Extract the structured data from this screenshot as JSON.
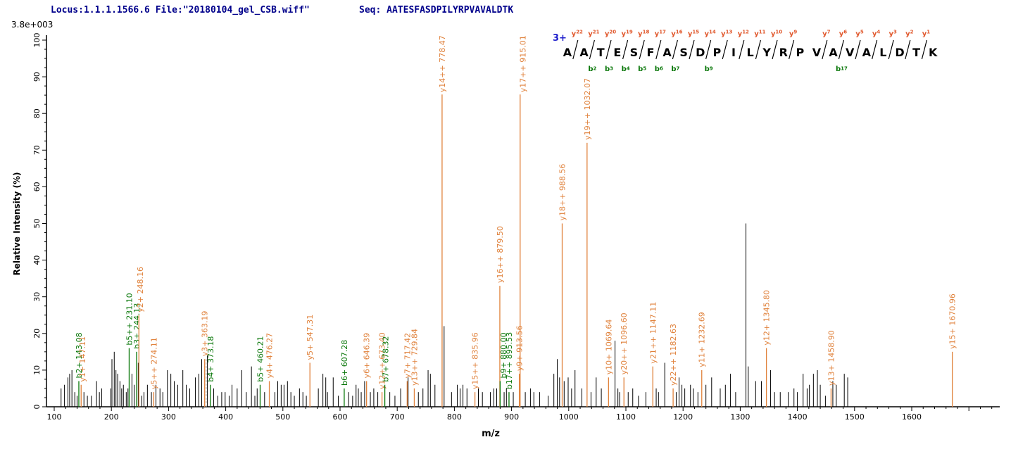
{
  "header": {
    "locus_file": "Locus:1.1.1.1566.6 File:\"20180104_gel_CSB.wiff\"",
    "seq": "Seq: AATESFASDPILYRPVAVALDTK"
  },
  "chart_data": {
    "type": "bar",
    "subtype": "ms2-peptide-fragmentation-spectrum",
    "title": "",
    "x_axis": {
      "label": "m/z",
      "min": 100,
      "max": 1755,
      "major_tick": 100,
      "minor_tick": 20,
      "tick_labels": [
        100,
        200,
        300,
        400,
        500,
        600,
        700,
        800,
        900,
        1000,
        1100,
        1200,
        1300,
        1400,
        1500,
        1600
      ]
    },
    "y_axis": {
      "label": "Relative  Intensity  (%)",
      "min": 0,
      "max": 100,
      "major_tick": 10,
      "minor_tick": 2.5,
      "tick_labels": [
        0,
        10,
        20,
        30,
        40,
        50,
        60,
        70,
        80,
        90,
        100
      ],
      "max_count_label": "3.8e+003"
    },
    "precursor_charge": "3+",
    "peptide": {
      "sequence": "AATESFASDPILYRPVAVALDTK",
      "charge": "3+",
      "y_ions": [
        {
          "label": "y22",
          "gap": 1
        },
        {
          "label": "y21",
          "gap": 2
        },
        {
          "label": "y20",
          "gap": 3
        },
        {
          "label": "y19",
          "gap": 4
        },
        {
          "label": "y18",
          "gap": 5
        },
        {
          "label": "y17",
          "gap": 6
        },
        {
          "label": "y16",
          "gap": 7
        },
        {
          "label": "y15",
          "gap": 8
        },
        {
          "label": "y14",
          "gap": 9
        },
        {
          "label": "y13",
          "gap": 10
        },
        {
          "label": "y12",
          "gap": 11
        },
        {
          "label": "y11",
          "gap": 12
        },
        {
          "label": "y10",
          "gap": 13
        },
        {
          "label": "y9",
          "gap": 14
        },
        {
          "label": "y7",
          "gap": 16
        },
        {
          "label": "y6",
          "gap": 17
        },
        {
          "label": "y5",
          "gap": 18
        },
        {
          "label": "y4",
          "gap": 19
        },
        {
          "label": "y3",
          "gap": 20
        },
        {
          "label": "y2",
          "gap": 21
        },
        {
          "label": "y1",
          "gap": 22
        }
      ],
      "b_ions": [
        {
          "label": "b2",
          "gap": 2
        },
        {
          "label": "b3",
          "gap": 3
        },
        {
          "label": "b4",
          "gap": 4
        },
        {
          "label": "b5",
          "gap": 5
        },
        {
          "label": "b6",
          "gap": 6
        },
        {
          "label": "b7",
          "gap": 7
        },
        {
          "label": "b9",
          "gap": 9
        },
        {
          "label": "b17",
          "gap": 17
        }
      ]
    },
    "labeled_peaks": {
      "y_series": [
        {
          "ion": "y1+",
          "mz": 147.11,
          "intensity": 6
        },
        {
          "ion": "y2+",
          "mz": 248.16,
          "intensity": 25
        },
        {
          "ion": "y5++",
          "mz": 274.11,
          "intensity": 4
        },
        {
          "ion": "y3+",
          "mz": 363.19,
          "intensity": 13
        },
        {
          "ion": "y4+",
          "mz": 476.27,
          "intensity": 7
        },
        {
          "ion": "y5+",
          "mz": 547.31,
          "intensity": 12
        },
        {
          "ion": "y6+",
          "mz": 646.39,
          "intensity": 7
        },
        {
          "ion": "y12++",
          "mz": 673.4,
          "intensity": 4
        },
        {
          "ion": "y7+",
          "mz": 717.42,
          "intensity": 7
        },
        {
          "ion": "y13++",
          "mz": 729.84,
          "intensity": 5
        },
        {
          "ion": "y14++",
          "mz": 778.47,
          "intensity": 100
        },
        {
          "ion": "y15++",
          "mz": 835.96,
          "intensity": 4
        },
        {
          "ion": "y16++",
          "mz": 879.5,
          "intensity": 33
        },
        {
          "ion": "y9+",
          "mz": 913.56,
          "intensity": 9
        },
        {
          "ion": "y17++",
          "mz": 915.01,
          "intensity": 88
        },
        {
          "ion": "y18++",
          "mz": 988.56,
          "intensity": 50
        },
        {
          "ion": "y19++",
          "mz": 1032.07,
          "intensity": 72
        },
        {
          "ion": "y10+",
          "mz": 1069.64,
          "intensity": 8
        },
        {
          "ion": "y20++",
          "mz": 1096.6,
          "intensity": 8
        },
        {
          "ion": "y21++",
          "mz": 1147.11,
          "intensity": 11
        },
        {
          "ion": "y22++",
          "mz": 1182.63,
          "intensity": 5
        },
        {
          "ion": "y11+",
          "mz": 1232.69,
          "intensity": 10
        },
        {
          "ion": "y12+",
          "mz": 1345.8,
          "intensity": 16
        },
        {
          "ion": "y13+",
          "mz": 1458.9,
          "intensity": 5
        },
        {
          "ion": "y15+",
          "mz": 1670.96,
          "intensity": 15
        }
      ],
      "b_series": [
        {
          "ion": "b2+",
          "mz": 143.08,
          "intensity": 7
        },
        {
          "ion": "b5++",
          "mz": 231.1,
          "intensity": 16
        },
        {
          "ion": "b3+",
          "mz": 244.13,
          "intensity": 15
        },
        {
          "ion": "b4+",
          "mz": 373.18,
          "intensity": 6
        },
        {
          "ion": "b5+",
          "mz": 460.21,
          "intensity": 6
        },
        {
          "ion": "b6+",
          "mz": 607.28,
          "intensity": 5
        },
        {
          "ion": "b7+",
          "mz": 678.32,
          "intensity": 6
        },
        {
          "ion": "b9+",
          "mz": 880.0,
          "intensity": 7
        },
        {
          "ion": "b17++",
          "mz": 895.53,
          "intensity": 4
        }
      ]
    },
    "dashed_peaks": [
      [
        366,
        13
      ]
    ],
    "noise_peaks": [
      [
        112,
        5
      ],
      [
        118,
        6
      ],
      [
        124,
        8
      ],
      [
        127,
        9
      ],
      [
        131,
        10
      ],
      [
        136,
        4
      ],
      [
        140,
        3
      ],
      [
        152,
        4
      ],
      [
        158,
        3
      ],
      [
        165,
        3
      ],
      [
        174,
        7
      ],
      [
        179,
        4
      ],
      [
        183,
        5
      ],
      [
        199,
        5
      ],
      [
        201,
        13
      ],
      [
        205,
        15
      ],
      [
        208,
        10
      ],
      [
        211,
        9
      ],
      [
        215,
        7
      ],
      [
        218,
        5
      ],
      [
        221,
        6
      ],
      [
        226,
        4
      ],
      [
        229,
        5
      ],
      [
        236,
        9
      ],
      [
        240,
        6
      ],
      [
        247,
        12
      ],
      [
        253,
        3
      ],
      [
        257,
        4
      ],
      [
        263,
        6
      ],
      [
        270,
        4
      ],
      [
        278,
        6
      ],
      [
        285,
        5
      ],
      [
        290,
        4
      ],
      [
        298,
        10
      ],
      [
        304,
        9
      ],
      [
        310,
        7
      ],
      [
        316,
        6
      ],
      [
        325,
        10
      ],
      [
        331,
        6
      ],
      [
        337,
        5
      ],
      [
        347,
        8
      ],
      [
        353,
        9
      ],
      [
        358,
        13
      ],
      [
        368,
        14
      ],
      [
        379,
        5
      ],
      [
        386,
        3
      ],
      [
        393,
        4
      ],
      [
        399,
        4
      ],
      [
        406,
        3
      ],
      [
        411,
        6
      ],
      [
        420,
        5
      ],
      [
        428,
        10
      ],
      [
        436,
        4
      ],
      [
        445,
        11
      ],
      [
        451,
        3
      ],
      [
        455,
        5
      ],
      [
        468,
        4
      ],
      [
        486,
        4
      ],
      [
        491,
        7
      ],
      [
        497,
        6
      ],
      [
        502,
        6
      ],
      [
        508,
        7
      ],
      [
        514,
        4
      ],
      [
        520,
        3
      ],
      [
        529,
        5
      ],
      [
        535,
        4
      ],
      [
        541,
        3
      ],
      [
        562,
        5
      ],
      [
        570,
        9
      ],
      [
        575,
        8
      ],
      [
        578,
        4
      ],
      [
        588,
        8
      ],
      [
        597,
        3
      ],
      [
        615,
        4
      ],
      [
        622,
        3
      ],
      [
        628,
        6
      ],
      [
        632,
        5
      ],
      [
        637,
        4
      ],
      [
        643,
        7
      ],
      [
        653,
        4
      ],
      [
        659,
        5
      ],
      [
        666,
        4
      ],
      [
        687,
        4
      ],
      [
        696,
        3
      ],
      [
        706,
        5
      ],
      [
        719,
        8
      ],
      [
        737,
        4
      ],
      [
        745,
        5
      ],
      [
        754,
        10
      ],
      [
        758,
        9
      ],
      [
        766,
        6
      ],
      [
        782,
        22
      ],
      [
        795,
        4
      ],
      [
        805,
        6
      ],
      [
        810,
        5
      ],
      [
        815,
        6
      ],
      [
        822,
        5
      ],
      [
        842,
        5
      ],
      [
        849,
        4
      ],
      [
        863,
        4
      ],
      [
        869,
        5
      ],
      [
        874,
        5
      ],
      [
        887,
        4
      ],
      [
        891,
        5
      ],
      [
        903,
        4
      ],
      [
        924,
        4
      ],
      [
        933,
        5
      ],
      [
        939,
        4
      ],
      [
        949,
        4
      ],
      [
        964,
        3
      ],
      [
        974,
        9
      ],
      [
        980,
        13
      ],
      [
        984,
        8
      ],
      [
        992,
        7
      ],
      [
        999,
        8
      ],
      [
        1005,
        5
      ],
      [
        1011,
        10
      ],
      [
        1023,
        5
      ],
      [
        1039,
        4
      ],
      [
        1048,
        8
      ],
      [
        1057,
        5
      ],
      [
        1081,
        18
      ],
      [
        1086,
        5
      ],
      [
        1089,
        4
      ],
      [
        1104,
        4
      ],
      [
        1112,
        5
      ],
      [
        1122,
        3
      ],
      [
        1135,
        4
      ],
      [
        1153,
        5
      ],
      [
        1157,
        4
      ],
      [
        1168,
        12
      ],
      [
        1188,
        4
      ],
      [
        1193,
        8
      ],
      [
        1198,
        6
      ],
      [
        1203,
        5
      ],
      [
        1213,
        6
      ],
      [
        1218,
        5
      ],
      [
        1226,
        4
      ],
      [
        1240,
        6
      ],
      [
        1250,
        8
      ],
      [
        1265,
        5
      ],
      [
        1274,
        6
      ],
      [
        1283,
        9
      ],
      [
        1292,
        4
      ],
      [
        1310,
        50
      ],
      [
        1314,
        11
      ],
      [
        1327,
        7
      ],
      [
        1337,
        7
      ],
      [
        1353,
        10
      ],
      [
        1360,
        4
      ],
      [
        1370,
        4
      ],
      [
        1384,
        4
      ],
      [
        1394,
        5
      ],
      [
        1400,
        4
      ],
      [
        1410,
        9
      ],
      [
        1417,
        5
      ],
      [
        1421,
        6
      ],
      [
        1428,
        9
      ],
      [
        1435,
        10
      ],
      [
        1440,
        6
      ],
      [
        1449,
        3
      ],
      [
        1462,
        7
      ],
      [
        1468,
        6
      ],
      [
        1482,
        9
      ],
      [
        1488,
        8
      ]
    ],
    "colors": {
      "y_series": "#E0823C",
      "b_series": "#077607",
      "seq_y_label": "#E0572B",
      "seq_b_label": "#077607",
      "header": "#00008B",
      "charge": "#1F1FCC",
      "noise": "#000000",
      "dashed": "#AAAAAA",
      "axis": "#000000"
    }
  }
}
